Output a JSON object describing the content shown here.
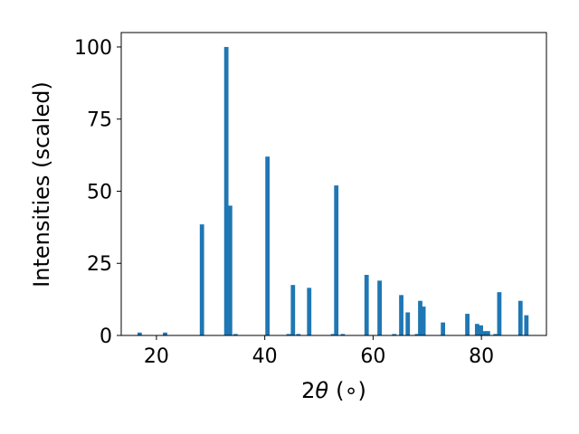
{
  "chart_data": {
    "type": "bar",
    "xlabel_prefix": "2",
    "xlabel_symbol": "θ",
    "xlabel_unit": "(∘)",
    "ylabel": "Intensities (scaled)",
    "xlim": [
      13.5,
      92
    ],
    "ylim": [
      0,
      105
    ],
    "xticks": [
      20,
      40,
      60,
      80
    ],
    "yticks": [
      0,
      25,
      50,
      75,
      100
    ],
    "bar_color": "#1f77b4",
    "bar_width": 0.8,
    "grid": false,
    "legend": "none",
    "x": [
      16.9,
      21.6,
      28.4,
      32.9,
      33.6,
      34.6,
      40.5,
      44.4,
      45.2,
      46.2,
      48.2,
      52.6,
      53.2,
      54.4,
      58.8,
      61.2,
      63.9,
      65.2,
      66.4,
      68.1,
      68.7,
      69.3,
      72.9,
      77.4,
      79.2,
      79.9,
      80.5,
      81.2,
      82.6,
      83.3,
      87.2,
      88.3
    ],
    "values": [
      1,
      1,
      38.5,
      100,
      45,
      0.5,
      62,
      0.5,
      17.5,
      0.5,
      16.5,
      0.5,
      52,
      0.5,
      21,
      19,
      0.5,
      14,
      8,
      0.5,
      12,
      10,
      4.5,
      7.5,
      4,
      3.5,
      1.5,
      1.5,
      0.5,
      15,
      12,
      7
    ]
  }
}
